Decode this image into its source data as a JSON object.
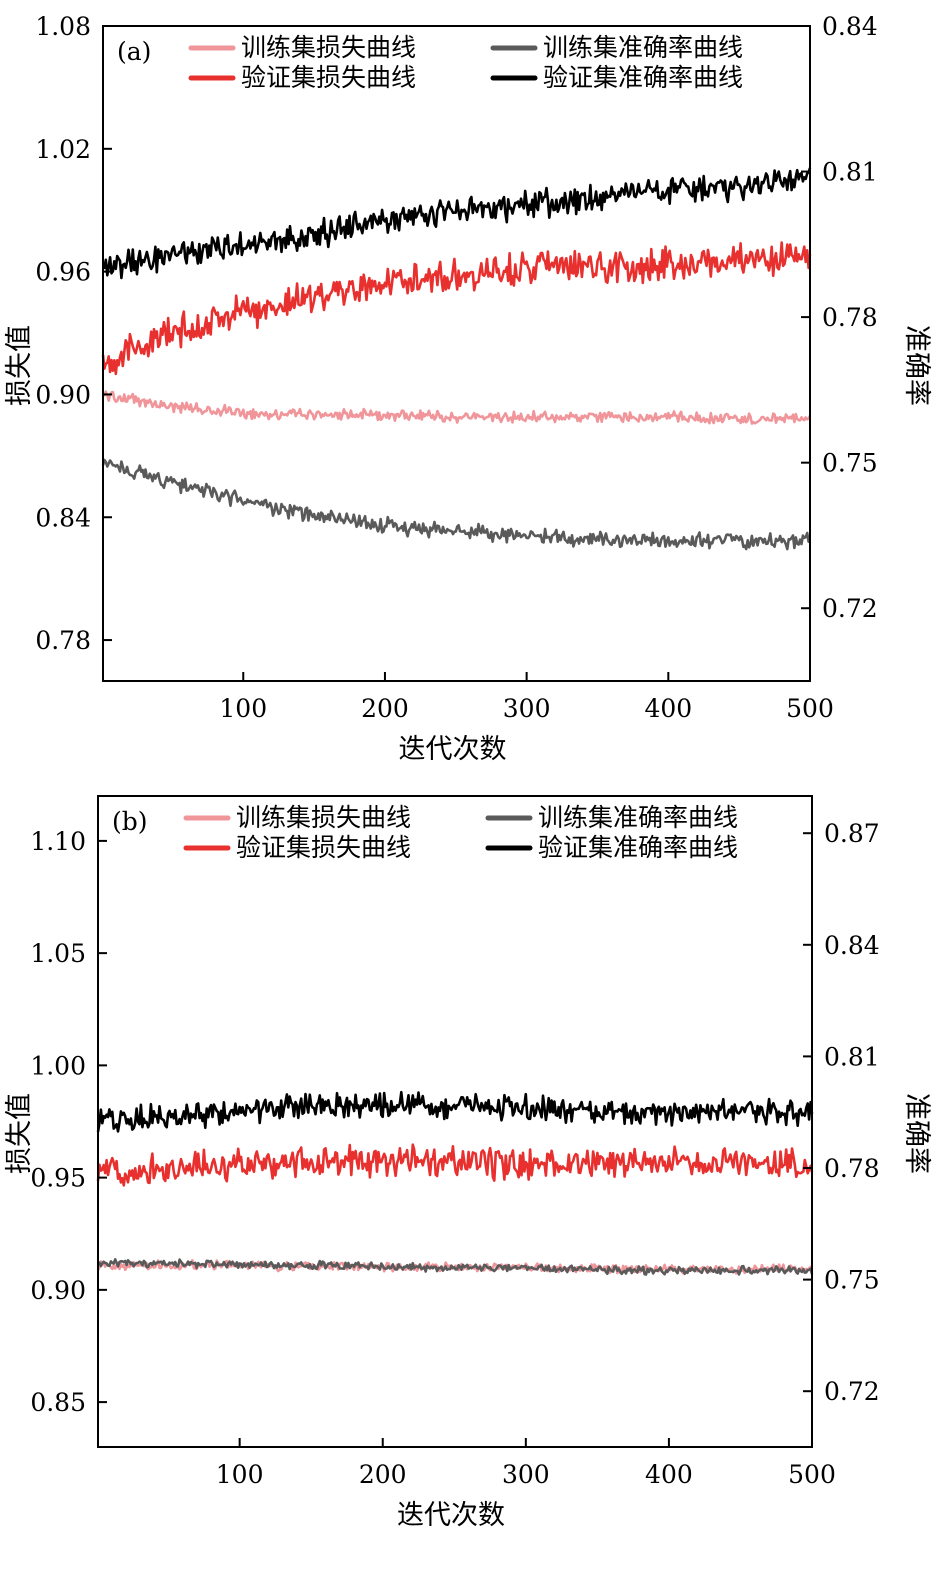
{
  "chart_data": [
    {
      "type": "line",
      "panel_label": "(a)",
      "xlabel": "迭代次数",
      "ylabel": "损失值",
      "y2label": "准确率",
      "xlim": [
        1,
        500
      ],
      "ylim": [
        0.76,
        1.08
      ],
      "y2lim": [
        0.705,
        0.84
      ],
      "x_ticks": [
        100,
        200,
        300,
        400,
        500
      ],
      "y_ticks": [
        0.78,
        0.84,
        0.9,
        0.96,
        1.02,
        1.08
      ],
      "y_tick_labels": [
        "0.78",
        "0.84",
        "0.90",
        "0.96",
        "1.02",
        "1.08"
      ],
      "y2_ticks": [
        0.72,
        0.75,
        0.78,
        0.81,
        0.84
      ],
      "y2_tick_labels": [
        "0.72",
        "0.75",
        "0.78",
        "0.81",
        "0.84"
      ],
      "grid": false,
      "legend_position": "top",
      "series": [
        {
          "name": "训练集损失曲线",
          "axis": "left",
          "color": "#f0959a",
          "amplitude": 0.002,
          "x": [
            1,
            25,
            50,
            100,
            150,
            200,
            250,
            300,
            350,
            400,
            450,
            500
          ],
          "y": [
            0.9,
            0.897,
            0.894,
            0.891,
            0.89,
            0.89,
            0.889,
            0.889,
            0.889,
            0.889,
            0.888,
            0.888
          ]
        },
        {
          "name": "验证集损失曲线",
          "axis": "left",
          "color": "#e8302f",
          "amplitude": 0.006,
          "x": [
            1,
            50,
            100,
            150,
            200,
            250,
            300,
            350,
            400,
            450,
            500
          ],
          "y": [
            0.916,
            0.93,
            0.94,
            0.948,
            0.955,
            0.958,
            0.962,
            0.962,
            0.964,
            0.965,
            0.967
          ]
        },
        {
          "name": "训练集准确率曲线",
          "axis": "right",
          "color": "#5a5a5a",
          "amplitude": 0.0012,
          "x": [
            1,
            50,
            100,
            150,
            200,
            250,
            300,
            350,
            400,
            450,
            500
          ],
          "y": [
            0.75,
            0.746,
            0.742,
            0.739,
            0.737,
            0.736,
            0.735,
            0.734,
            0.734,
            0.734,
            0.734
          ]
        },
        {
          "name": "验证集准确率曲线",
          "axis": "right",
          "color": "#000000",
          "amplitude": 0.0022,
          "x": [
            1,
            50,
            100,
            150,
            200,
            250,
            300,
            350,
            400,
            450,
            500
          ],
          "y": [
            0.79,
            0.793,
            0.795,
            0.797,
            0.8,
            0.802,
            0.803,
            0.805,
            0.806,
            0.807,
            0.809
          ]
        }
      ]
    },
    {
      "type": "line",
      "panel_label": "(b)",
      "xlabel": "迭代次数",
      "ylabel": "损失值",
      "y2label": "准确率",
      "xlim": [
        1,
        500
      ],
      "ylim": [
        0.83,
        1.12
      ],
      "y2lim": [
        0.705,
        0.88
      ],
      "x_ticks": [
        100,
        200,
        300,
        400,
        500
      ],
      "y_ticks": [
        0.85,
        0.9,
        0.95,
        1.0,
        1.05,
        1.1
      ],
      "y_tick_labels": [
        "0.85",
        "0.90",
        "0.95",
        "1.00",
        "1.05",
        "1.10"
      ],
      "y2_ticks": [
        0.72,
        0.75,
        0.78,
        0.81,
        0.84,
        0.87
      ],
      "y2_tick_labels": [
        "0.72",
        "0.75",
        "0.78",
        "0.81",
        "0.84",
        "0.87"
      ],
      "grid": false,
      "legend_position": "top",
      "series": [
        {
          "name": "训练集损失曲线",
          "axis": "left",
          "color": "#f0959a",
          "amplitude": 0.0015,
          "x": [
            1,
            100,
            200,
            300,
            400,
            500
          ],
          "y": [
            0.911,
            0.911,
            0.91,
            0.91,
            0.909,
            0.909
          ]
        },
        {
          "name": "验证集损失曲线",
          "axis": "left",
          "color": "#e8302f",
          "amplitude": 0.005,
          "x": [
            1,
            50,
            100,
            150,
            200,
            250,
            300,
            350,
            400,
            450,
            500
          ],
          "y": [
            0.953,
            0.954,
            0.956,
            0.957,
            0.957,
            0.957,
            0.956,
            0.956,
            0.957,
            0.957,
            0.956
          ]
        },
        {
          "name": "训练集准确率曲线",
          "axis": "right",
          "color": "#5a5a5a",
          "amplitude": 0.0008,
          "x": [
            1,
            100,
            200,
            300,
            400,
            500
          ],
          "y": [
            0.7545,
            0.754,
            0.7535,
            0.753,
            0.7525,
            0.7525
          ]
        },
        {
          "name": "验证集准确率曲线",
          "axis": "right",
          "color": "#000000",
          "amplitude": 0.0025,
          "x": [
            1,
            50,
            100,
            150,
            200,
            250,
            300,
            350,
            400,
            450,
            500
          ],
          "y": [
            0.793,
            0.794,
            0.795,
            0.797,
            0.797,
            0.797,
            0.796,
            0.795,
            0.795,
            0.795,
            0.795
          ]
        }
      ]
    }
  ]
}
